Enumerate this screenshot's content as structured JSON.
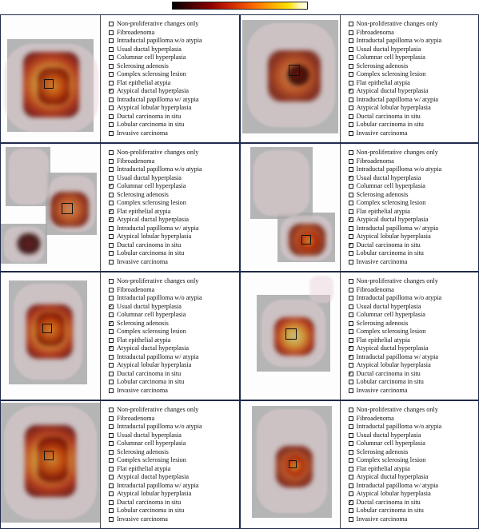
{
  "labels": [
    "Non-proliferative changes only",
    "Fibroadenoma",
    "Intraductal papilloma w/o atypia",
    "Usual ductal hyperplasia",
    "Columnar cell hyperplasia",
    "Sclerosing adenosis",
    "Complex sclerosing lesion",
    "Flat epithelial atypia",
    "Atypical ductal hyperplasia",
    "Intraductal papilloma w/ atypia",
    "Atypical lobular hyperplasia",
    "Ductal carcinoma in situ",
    "Lobular carcinoma in situ",
    "Invasive carcinoma"
  ],
  "panels": [
    {
      "checked": [
        8
      ],
      "thumb": {
        "tissue": [
          {
            "l": 4,
            "t": 36,
            "w": 118,
            "h": 110
          }
        ],
        "grey": [
          {
            "l": 8,
            "t": 30,
            "w": 108,
            "h": 116
          }
        ],
        "heat": [
          {
            "cls": "hot",
            "l": 28,
            "t": 46,
            "w": 70,
            "h": 82
          },
          {
            "cls": "warm",
            "l": 46,
            "t": 66,
            "w": 40,
            "h": 46
          }
        ],
        "box": [
          {
            "l": 54,
            "t": 80,
            "w": 12,
            "h": 12
          }
        ]
      }
    },
    {
      "checked": [
        8
      ],
      "thumb": {
        "tissue": [
          {
            "l": 8,
            "t": 10,
            "w": 110,
            "h": 130
          }
        ],
        "grey": [
          {
            "l": 2,
            "t": 6,
            "w": 120,
            "h": 142
          }
        ],
        "heat": [
          {
            "cls": "warm",
            "l": 34,
            "t": 44,
            "w": 66,
            "h": 64
          },
          {
            "cls": "dark",
            "l": 58,
            "t": 62,
            "w": 28,
            "h": 26
          }
        ],
        "box": [
          {
            "l": 60,
            "t": 62,
            "w": 14,
            "h": 14
          }
        ]
      }
    },
    {
      "checked": [
        4,
        7,
        8
      ],
      "thumb": {
        "tissue": [
          {
            "l": 10,
            "t": 6,
            "w": 50,
            "h": 70
          },
          {
            "l": 60,
            "t": 40,
            "w": 58,
            "h": 70
          },
          {
            "l": 4,
            "t": 104,
            "w": 50,
            "h": 44
          }
        ],
        "grey": [
          {
            "l": 6,
            "t": 4,
            "w": 56,
            "h": 74
          },
          {
            "l": 56,
            "t": 36,
            "w": 64,
            "h": 78
          },
          {
            "l": 0,
            "t": 100,
            "w": 58,
            "h": 50
          }
        ],
        "heat": [
          {
            "cls": "warm",
            "l": 62,
            "t": 60,
            "w": 48,
            "h": 44
          },
          {
            "cls": "dark",
            "l": 20,
            "t": 112,
            "w": 30,
            "h": 26
          }
        ],
        "box": [
          {
            "l": 76,
            "t": 74,
            "w": 14,
            "h": 14
          }
        ]
      }
    },
    {
      "checked": [
        3,
        8,
        11
      ],
      "thumb": {
        "tissue": [
          {
            "l": 16,
            "t": 8,
            "w": 70,
            "h": 82
          },
          {
            "l": 50,
            "t": 90,
            "w": 64,
            "h": 56
          }
        ],
        "grey": [
          {
            "l": 12,
            "t": 4,
            "w": 78,
            "h": 90
          },
          {
            "l": 46,
            "t": 86,
            "w": 72,
            "h": 62
          }
        ],
        "heat": [
          {
            "cls": "warm",
            "l": 60,
            "t": 100,
            "w": 46,
            "h": 40
          },
          {
            "cls": "hot",
            "l": 72,
            "t": 110,
            "w": 26,
            "h": 24
          }
        ],
        "box": [
          {
            "l": 76,
            "t": 114,
            "w": 12,
            "h": 12
          }
        ]
      }
    },
    {
      "checked": [
        3,
        5,
        8
      ],
      "thumb": {
        "tissue": [
          {
            "l": 16,
            "t": 14,
            "w": 86,
            "h": 120
          }
        ],
        "grey": [
          {
            "l": 10,
            "t": 10,
            "w": 98,
            "h": 130
          }
        ],
        "heat": [
          {
            "cls": "hot",
            "l": 32,
            "t": 40,
            "w": 58,
            "h": 68
          },
          {
            "cls": "warm",
            "l": 44,
            "t": 50,
            "w": 36,
            "h": 42
          }
        ],
        "box": [
          {
            "l": 52,
            "t": 64,
            "w": 12,
            "h": 12
          }
        ]
      }
    },
    {
      "checked": [
        8,
        9,
        11
      ],
      "thumb": {
        "tissue": [
          {
            "l": 26,
            "t": 34,
            "w": 80,
            "h": 84
          },
          {
            "l": 86,
            "t": 4,
            "w": 30,
            "h": 34
          }
        ],
        "grey": [
          {
            "l": 20,
            "t": 28,
            "w": 92,
            "h": 96
          }
        ],
        "heat": [
          {
            "cls": "hot",
            "l": 42,
            "t": 56,
            "w": 50,
            "h": 48
          }
        ],
        "box": [
          {
            "l": 56,
            "t": 70,
            "w": 14,
            "h": 14
          }
        ]
      }
    },
    {
      "checked": [],
      "thumb": {
        "tissue": [
          {
            "l": 4,
            "t": 6,
            "w": 116,
            "h": 142
          }
        ],
        "grey": [
          {
            "l": 0,
            "t": 2,
            "w": 124,
            "h": 150
          }
        ],
        "heat": [
          {
            "cls": "hot",
            "l": 30,
            "t": 30,
            "w": 64,
            "h": 90
          },
          {
            "cls": "warm",
            "l": 46,
            "t": 44,
            "w": 38,
            "h": 58
          }
        ],
        "box": [
          {
            "l": 54,
            "t": 62,
            "w": 12,
            "h": 12
          }
        ]
      }
    },
    {
      "checked": [
        11
      ],
      "thumb": {
        "tissue": [
          {
            "l": 20,
            "t": 10,
            "w": 88,
            "h": 130
          }
        ],
        "grey": [
          {
            "l": 14,
            "t": 6,
            "w": 100,
            "h": 140
          }
        ],
        "heat": [
          {
            "cls": "warm",
            "l": 44,
            "t": 56,
            "w": 46,
            "h": 52
          },
          {
            "cls": "hot",
            "l": 56,
            "t": 68,
            "w": 24,
            "h": 26
          }
        ],
        "box": [
          {
            "l": 60,
            "t": 74,
            "w": 10,
            "h": 10
          }
        ]
      }
    }
  ],
  "colorbar": {
    "stops": [
      "#000000",
      "#2b0000",
      "#5a0000",
      "#8b0000",
      "#c21d00",
      "#e84800",
      "#ff7a00",
      "#ffb400",
      "#ffe100",
      "#fff9b0",
      "#ffffe6"
    ]
  }
}
